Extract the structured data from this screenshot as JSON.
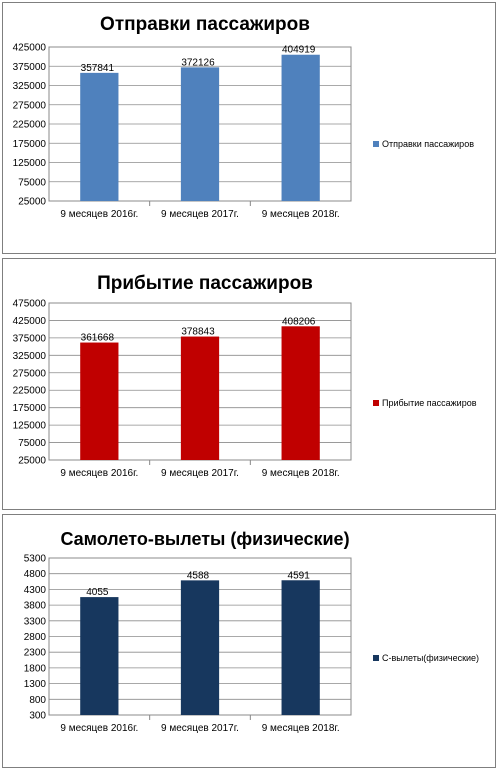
{
  "chart_data": [
    {
      "type": "bar",
      "title": "Отправки пассажиров",
      "categories": [
        "9 месяцев 2016г.",
        "9 месяцев 2017г.",
        "9 месяцев 2018г."
      ],
      "series": [
        {
          "name": "Отправки пассажиров",
          "values": [
            357841,
            372126,
            404919
          ]
        }
      ],
      "ylim": [
        25000,
        425000
      ],
      "yticks": [
        25000,
        75000,
        125000,
        175000,
        225000,
        275000,
        325000,
        375000,
        425000
      ],
      "grid": true,
      "legend": "right",
      "color": "#4f81bd"
    },
    {
      "type": "bar",
      "title": "Прибытие пассажиров",
      "categories": [
        "9 месяцев 2016г.",
        "9 месяцев 2017г.",
        "9 месяцев 2018г."
      ],
      "series": [
        {
          "name": "Прибытие пассажиров",
          "values": [
            361668,
            378843,
            408206
          ]
        }
      ],
      "ylim": [
        25000,
        475000
      ],
      "yticks": [
        25000,
        75000,
        125000,
        175000,
        225000,
        275000,
        325000,
        375000,
        425000,
        475000
      ],
      "grid": true,
      "legend": "right",
      "color": "#c00000"
    },
    {
      "type": "bar",
      "title": "Самолето-вылеты (физические)",
      "categories": [
        "9 месяцев 2016г.",
        "9 месяцев 2017г.",
        "9 месяцев 2018г."
      ],
      "series": [
        {
          "name": "С-вылеты(физические)",
          "values": [
            4055,
            4588,
            4591
          ]
        }
      ],
      "ylim": [
        300,
        5300
      ],
      "yticks": [
        300,
        800,
        1300,
        1800,
        2300,
        2800,
        3300,
        3800,
        4300,
        4800,
        5300
      ],
      "grid": true,
      "legend": "right",
      "color": "#17375e"
    }
  ]
}
